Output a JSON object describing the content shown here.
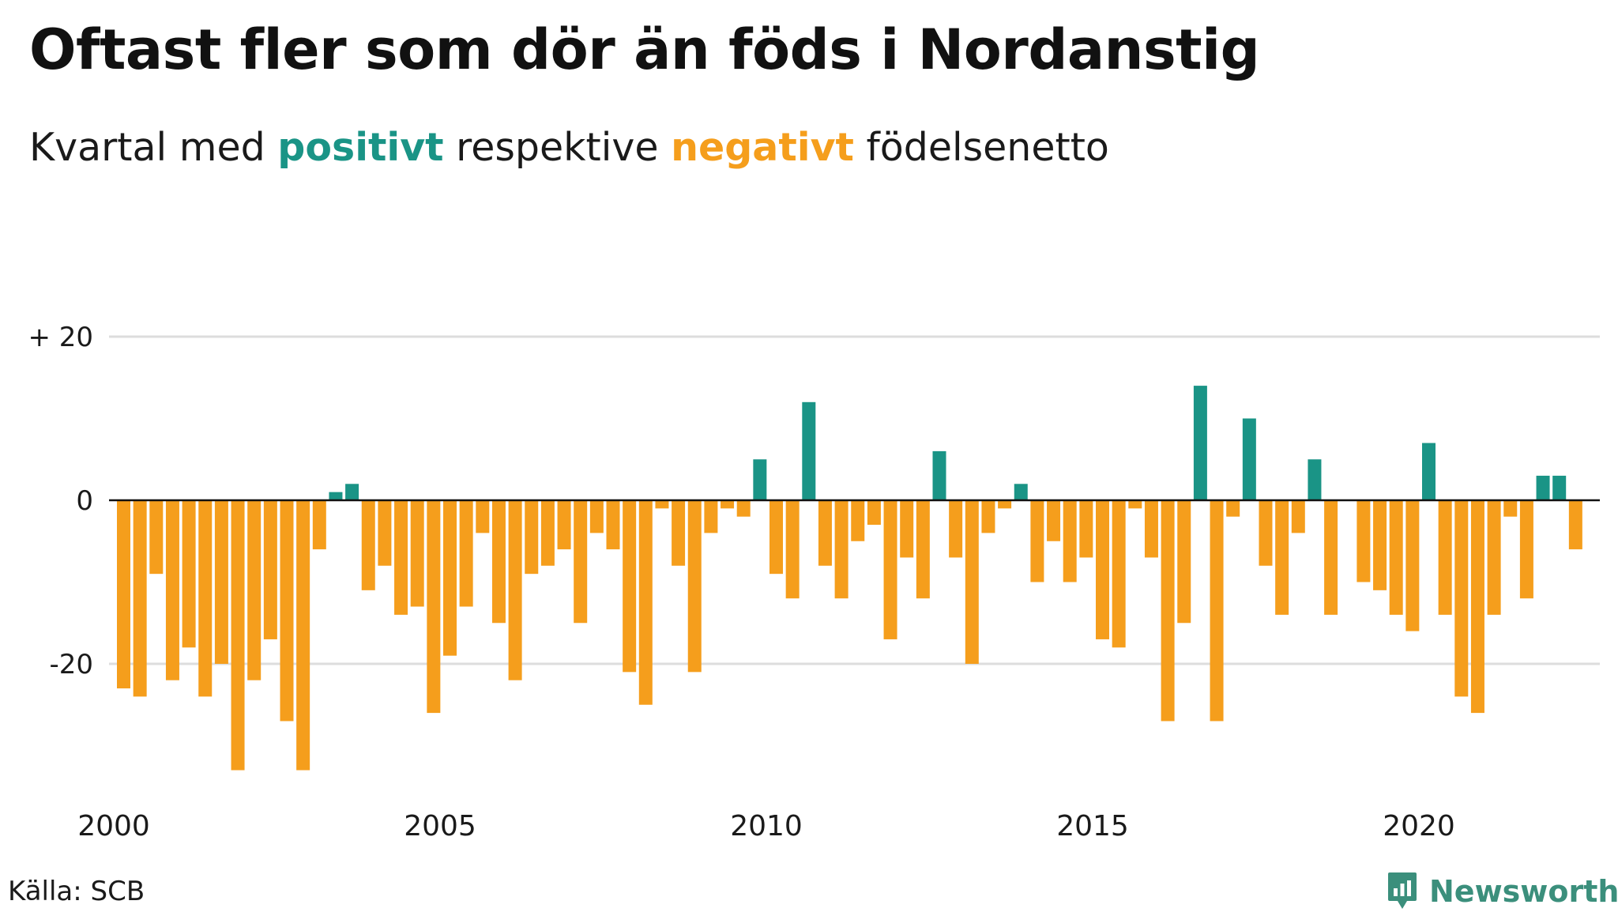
{
  "title": "Oftast fler som dör än föds i Nordanstig",
  "subtitle": {
    "prefix": "Kvartal med ",
    "positive_word": "positivt",
    "middle": " respektive ",
    "negative_word": "negativt",
    "suffix": " födelsenetto"
  },
  "source": "Källa: SCB",
  "brand": {
    "name": "Newsworthy",
    "icon": "newsworthy-logo-icon"
  },
  "colors": {
    "positive": "#1a9486",
    "negative": "#f59e1c",
    "grid": "#dddddd",
    "zero_line": "#111111"
  },
  "chart_data": {
    "type": "bar",
    "title": "Oftast fler som dör än föds i Nordanstig",
    "subtitle": "Kvartal med positivt respektive negativt födelsenetto",
    "xlabel": "",
    "ylabel": "",
    "ylim": [
      -37,
      37
    ],
    "grid": true,
    "legend": "none",
    "y_ticks": [
      {
        "value": 20,
        "label": "+ 20"
      },
      {
        "value": 0,
        "label": "0"
      },
      {
        "value": -20,
        "label": "-20"
      }
    ],
    "x_ticks": [
      "2000",
      "2005",
      "2010",
      "2015",
      "2020"
    ],
    "x_start_year": 2000,
    "values": [
      -23,
      -24,
      -9,
      -22,
      -18,
      -24,
      -20,
      -33,
      -22,
      -17,
      -27,
      -33,
      -6,
      1,
      2,
      -11,
      -8,
      -14,
      -13,
      -26,
      -19,
      -13,
      -4,
      -15,
      -22,
      -9,
      -8,
      -6,
      -15,
      -4,
      -6,
      -21,
      -25,
      -1,
      -8,
      -21,
      -4,
      -1,
      -2,
      5,
      -9,
      -12,
      12,
      -8,
      -12,
      -5,
      -3,
      -17,
      -7,
      -12,
      6,
      -7,
      -20,
      -4,
      -1,
      2,
      -10,
      -5,
      -10,
      -7,
      -17,
      -18,
      -1,
      -7,
      -27,
      -15,
      14,
      -27,
      -2,
      10,
      -8,
      -14,
      -4,
      5,
      -14,
      0,
      -10,
      -11,
      -14,
      -16,
      7,
      -14,
      -24,
      -26,
      -14,
      -2,
      -12,
      3,
      3,
      -6
    ]
  }
}
